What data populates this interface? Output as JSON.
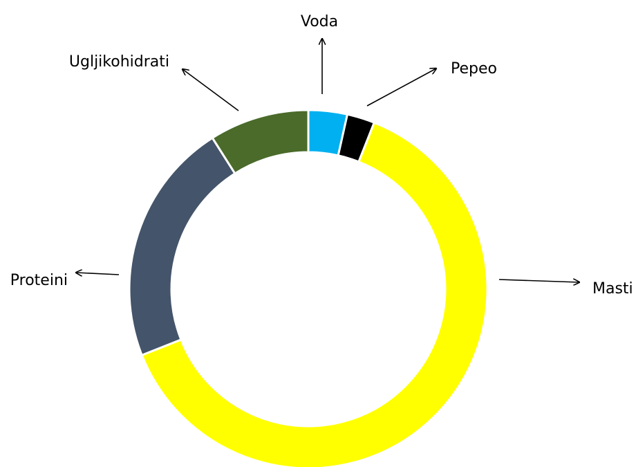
{
  "chart_data": {
    "type": "pie",
    "variant": "donut",
    "categories": [
      "Voda",
      "Pepeo",
      "Masti",
      "Proteini",
      "Ugljikohidrati"
    ],
    "values": [
      3.5,
      2.5,
      63,
      22,
      9
    ],
    "colors": [
      "#00b0f0",
      "#000000",
      "#ffff00",
      "#44546a",
      "#4a6b2a"
    ],
    "start_angle_deg": 0,
    "direction": "clockwise",
    "legend": "none",
    "labels_with_arrows": true
  }
}
